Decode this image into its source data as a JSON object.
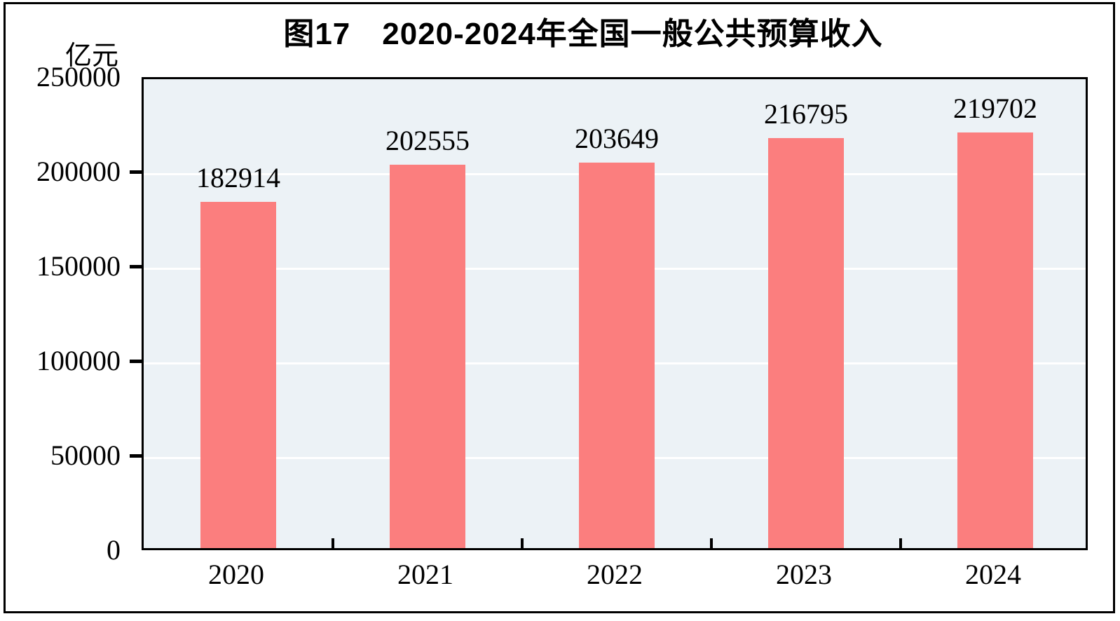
{
  "figure": {
    "title": "图17　2020-2024年全国一般公共预算收入",
    "unit_label": "亿元"
  },
  "chart_data": {
    "type": "bar",
    "title": "图17　2020-2024年全国一般公共预算收入",
    "ylabel": "亿元",
    "xlabel": "",
    "categories": [
      "2020",
      "2021",
      "2022",
      "2023",
      "2024"
    ],
    "values": [
      182914,
      202555,
      203649,
      216795,
      219702
    ],
    "value_labels": [
      "182914",
      "202555",
      "203649",
      "216795",
      "219702"
    ],
    "ylim": [
      0,
      250000
    ],
    "y_ticks": [
      0,
      50000,
      100000,
      150000,
      200000,
      250000
    ],
    "y_tick_labels": [
      "0",
      "50000",
      "100000",
      "150000",
      "200000",
      "250000"
    ],
    "grid": "horizontal",
    "legend_position": "none",
    "colors": {
      "bar_fill": "#FB7E7E",
      "plot_background": "#ECF2F6",
      "gridline": "#FFFFFF",
      "axis_and_frame": "#000000",
      "text": "#000000",
      "page_background": "#FFFFFF"
    }
  }
}
